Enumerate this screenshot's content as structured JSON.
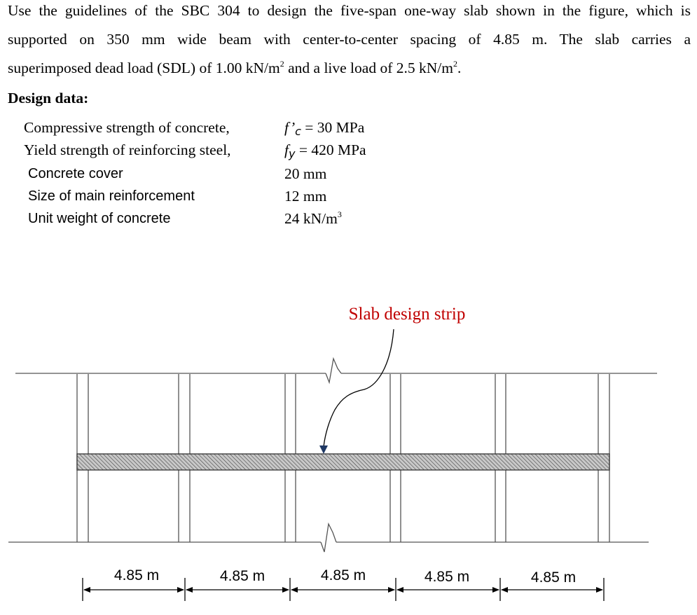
{
  "problem": {
    "line1": "Use the guidelines of the SBC 304 to design the five-span one-way slab shown in the figure, which is",
    "line2": "supported on 350 mm wide beam with center-to-center spacing of 4.85 m. The slab carries a",
    "line3_prefix": "superimposed dead load (SDL) of 1.00 kN/m",
    "line3_sup": "2",
    "line3_mid": " and a live load of 2.5 kN/m",
    "line3_sup2": "2",
    "line3_end": "."
  },
  "design_data": {
    "heading": "Design data:",
    "rows": [
      {
        "label": "Compressive strength of concrete,",
        "symbol": "f’",
        "subscript": "c",
        "value": " = 30 MPa"
      },
      {
        "label": "Yield strength of reinforcing steel,",
        "symbol": "f",
        "subscript": "y",
        "value": " = 420 MPa"
      },
      {
        "label": "Concrete cover",
        "value": "20 mm"
      },
      {
        "label": "Size of main reinforcement",
        "value": "12 mm"
      },
      {
        "label": "Unit weight of concrete",
        "value": "24 kN/m",
        "value_sup": "3"
      }
    ]
  },
  "figure": {
    "callout_label": "Slab design strip",
    "callout_color": "#c00000",
    "strip_fill": "#c8c8c8",
    "spans": [
      "4.85 m",
      "4.85 m",
      "4.85 m",
      "4.85 m",
      "4.85 m"
    ]
  }
}
